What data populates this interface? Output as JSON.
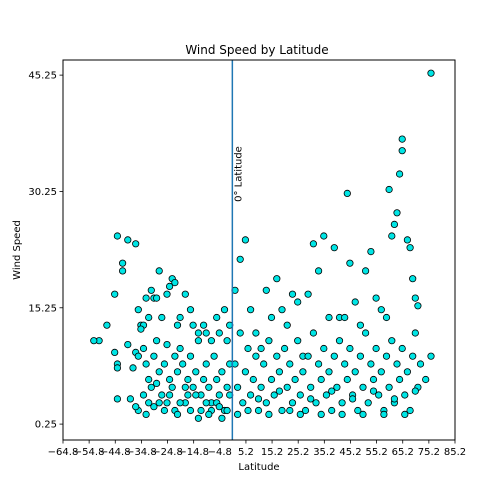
{
  "chart_data": {
    "type": "scatter",
    "title": "Wind Speed by Latitude",
    "xlabel": "Latitude",
    "ylabel": "Wind Speed",
    "xlim": [
      -64.8,
      85.2
    ],
    "ylim": [
      -1.8,
      47.2
    ],
    "xticks": [
      -64.8,
      -54.8,
      -44.8,
      -34.8,
      -24.8,
      -14.8,
      -4.8,
      5.2,
      15.2,
      25.2,
      35.2,
      45.2,
      55.2,
      65.2,
      75.2,
      85.2
    ],
    "xtick_labels": [
      "−64.8",
      "−54.8",
      "−44.8",
      "−34.8",
      "−24.8",
      "−14.8",
      "−4.8",
      "5.2",
      "15.2",
      "25.2",
      "35.2",
      "45.2",
      "55.2",
      "65.2",
      "75.2",
      "85.2"
    ],
    "yticks": [
      0.25,
      15.25,
      30.25,
      45.25
    ],
    "ytick_labels": [
      "0.25",
      "15.25",
      "30.25",
      "45.25"
    ],
    "grid": false,
    "marker_face_color": "#00e5e5",
    "marker_edge_color": "#000000",
    "reference_line": {
      "x": 0,
      "color": "#1f77b4",
      "label": "0° Latitude"
    },
    "points": [
      [
        -51,
        11
      ],
      [
        -53,
        11
      ],
      [
        -48,
        13
      ],
      [
        -44,
        24.5
      ],
      [
        -45,
        17
      ],
      [
        -42,
        21
      ],
      [
        -42,
        20
      ],
      [
        -40,
        24
      ],
      [
        -37,
        23.5
      ],
      [
        -44,
        8
      ],
      [
        -45,
        9.5
      ],
      [
        -44,
        7.5
      ],
      [
        -44,
        3.5
      ],
      [
        -40,
        10.5
      ],
      [
        -39,
        3.5
      ],
      [
        -38,
        7.5
      ],
      [
        -37,
        9.5
      ],
      [
        -35,
        13
      ],
      [
        -36,
        15
      ],
      [
        -33,
        16.5
      ],
      [
        -34,
        13
      ],
      [
        -32,
        14
      ],
      [
        -31,
        17.5
      ],
      [
        -30,
        16.5
      ],
      [
        -29,
        16.5
      ],
      [
        -28,
        20
      ],
      [
        -27,
        14
      ],
      [
        -25,
        17
      ],
      [
        -24,
        18
      ],
      [
        -23,
        19
      ],
      [
        -22,
        18.5
      ],
      [
        -21,
        13
      ],
      [
        -20,
        14
      ],
      [
        -18,
        17
      ],
      [
        -16,
        15
      ],
      [
        -15,
        13
      ],
      [
        -13,
        12
      ],
      [
        -11,
        13
      ],
      [
        -10,
        12
      ],
      [
        -8,
        11
      ],
      [
        -6,
        14
      ],
      [
        -5,
        12
      ],
      [
        -3,
        15
      ],
      [
        -2,
        11
      ],
      [
        -1,
        13
      ],
      [
        -36,
        9
      ],
      [
        -35,
        12.5
      ],
      [
        -34,
        10
      ],
      [
        -33,
        8
      ],
      [
        -32,
        6
      ],
      [
        -31,
        5
      ],
      [
        -30,
        9
      ],
      [
        -29,
        11
      ],
      [
        -28,
        7
      ],
      [
        -27,
        4
      ],
      [
        -26,
        8
      ],
      [
        -25,
        10.5
      ],
      [
        -24,
        6
      ],
      [
        -23,
        5
      ],
      [
        -22,
        9
      ],
      [
        -21,
        7
      ],
      [
        -20,
        10
      ],
      [
        -19,
        8
      ],
      [
        -18,
        3
      ],
      [
        -17,
        6
      ],
      [
        -16,
        9
      ],
      [
        -15,
        5
      ],
      [
        -14,
        7
      ],
      [
        -13,
        11
      ],
      [
        -12,
        4
      ],
      [
        -11,
        6
      ],
      [
        -10,
        8
      ],
      [
        -9,
        5
      ],
      [
        -8,
        3
      ],
      [
        -7,
        9
      ],
      [
        -6,
        6
      ],
      [
        -5,
        4
      ],
      [
        -4,
        7
      ],
      [
        -3,
        2
      ],
      [
        -2,
        5
      ],
      [
        -1,
        8
      ],
      [
        -36,
        2
      ],
      [
        -34,
        4
      ],
      [
        -32,
        3
      ],
      [
        -30,
        2.5
      ],
      [
        -28,
        3
      ],
      [
        -26,
        2
      ],
      [
        -24,
        4
      ],
      [
        -22,
        2
      ],
      [
        -20,
        3
      ],
      [
        -18,
        5
      ],
      [
        -16,
        2
      ],
      [
        -14,
        4
      ],
      [
        -12,
        2
      ],
      [
        -10,
        3
      ],
      [
        -8,
        2
      ],
      [
        -6,
        3
      ],
      [
        -4,
        1
      ],
      [
        -2,
        2
      ],
      [
        -37,
        2.5
      ],
      [
        -33,
        1.5
      ],
      [
        -29,
        5.5
      ],
      [
        -25,
        3
      ],
      [
        -21,
        1.5
      ],
      [
        -17,
        4
      ],
      [
        -13,
        1
      ],
      [
        -9,
        1.5
      ],
      [
        -5,
        2.5
      ],
      [
        -1,
        4
      ],
      [
        1,
        17.5
      ],
      [
        3,
        21.5
      ],
      [
        5,
        24
      ],
      [
        7,
        15
      ],
      [
        9,
        12
      ],
      [
        11,
        10
      ],
      [
        13,
        17.5
      ],
      [
        15,
        14
      ],
      [
        17,
        19
      ],
      [
        19,
        15
      ],
      [
        21,
        13
      ],
      [
        23,
        17
      ],
      [
        25,
        16
      ],
      [
        27,
        9
      ],
      [
        29,
        17
      ],
      [
        31,
        23.5
      ],
      [
        33,
        20
      ],
      [
        35,
        24.5
      ],
      [
        37,
        14
      ],
      [
        39,
        23
      ],
      [
        41,
        14
      ],
      [
        43,
        14
      ],
      [
        45,
        21
      ],
      [
        47,
        16
      ],
      [
        49,
        13
      ],
      [
        51,
        20
      ],
      [
        53,
        22.5
      ],
      [
        55,
        16.5
      ],
      [
        57,
        15
      ],
      [
        59,
        14
      ],
      [
        61,
        24.5
      ],
      [
        63,
        27.5
      ],
      [
        65,
        37
      ],
      [
        64,
        32.5
      ],
      [
        65,
        35.5
      ],
      [
        67,
        24
      ],
      [
        68,
        23
      ],
      [
        69,
        19
      ],
      [
        70,
        16.5
      ],
      [
        71,
        15.5
      ],
      [
        76,
        45.5
      ],
      [
        44,
        30
      ],
      [
        60,
        30.5
      ],
      [
        62,
        26
      ],
      [
        1,
        8
      ],
      [
        2,
        5
      ],
      [
        3,
        12
      ],
      [
        4,
        3
      ],
      [
        5,
        7
      ],
      [
        6,
        10
      ],
      [
        7,
        4
      ],
      [
        8,
        6
      ],
      [
        9,
        9
      ],
      [
        10,
        2
      ],
      [
        11,
        5
      ],
      [
        12,
        8
      ],
      [
        13,
        3
      ],
      [
        14,
        11
      ],
      [
        15,
        6
      ],
      [
        16,
        4
      ],
      [
        17,
        9
      ],
      [
        18,
        7
      ],
      [
        19,
        2
      ],
      [
        20,
        10
      ],
      [
        21,
        5
      ],
      [
        22,
        8
      ],
      [
        23,
        3
      ],
      [
        24,
        6
      ],
      [
        25,
        11
      ],
      [
        26,
        4
      ],
      [
        27,
        7
      ],
      [
        28,
        2
      ],
      [
        29,
        9
      ],
      [
        30,
        5
      ],
      [
        31,
        12
      ],
      [
        32,
        3
      ],
      [
        33,
        8
      ],
      [
        34,
        6
      ],
      [
        35,
        10
      ],
      [
        36,
        4
      ],
      [
        37,
        7
      ],
      [
        38,
        2
      ],
      [
        39,
        9
      ],
      [
        40,
        5
      ],
      [
        41,
        11
      ],
      [
        42,
        3
      ],
      [
        43,
        8
      ],
      [
        44,
        6
      ],
      [
        45,
        10
      ],
      [
        46,
        4
      ],
      [
        47,
        7
      ],
      [
        48,
        2
      ],
      [
        49,
        9
      ],
      [
        50,
        5
      ],
      [
        51,
        12
      ],
      [
        52,
        3
      ],
      [
        53,
        8
      ],
      [
        54,
        6
      ],
      [
        55,
        10
      ],
      [
        56,
        4
      ],
      [
        57,
        7
      ],
      [
        58,
        2
      ],
      [
        59,
        9
      ],
      [
        60,
        5
      ],
      [
        61,
        11
      ],
      [
        62,
        3
      ],
      [
        63,
        8
      ],
      [
        64,
        6
      ],
      [
        65,
        10
      ],
      [
        66,
        4
      ],
      [
        67,
        7
      ],
      [
        68,
        2
      ],
      [
        69,
        9
      ],
      [
        70,
        12
      ],
      [
        71,
        5
      ],
      [
        72,
        8
      ],
      [
        74,
        6
      ],
      [
        76,
        9
      ],
      [
        2,
        1.5
      ],
      [
        6,
        2
      ],
      [
        10,
        3.5
      ],
      [
        14,
        1.5
      ],
      [
        18,
        4.5
      ],
      [
        22,
        2
      ],
      [
        26,
        1.5
      ],
      [
        30,
        3.5
      ],
      [
        34,
        1.5
      ],
      [
        38,
        4.5
      ],
      [
        42,
        1.5
      ],
      [
        46,
        3.5
      ],
      [
        50,
        1.5
      ],
      [
        54,
        4.5
      ],
      [
        58,
        1.5
      ],
      [
        62,
        3.5
      ],
      [
        66,
        1.5
      ],
      [
        70,
        4.5
      ]
    ]
  }
}
